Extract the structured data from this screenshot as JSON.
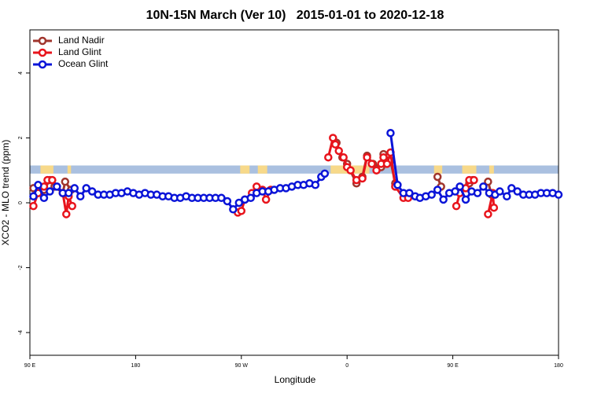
{
  "chart_data": {
    "type": "line",
    "title": "10N-15N March (Ver 10)   2015-01-01 to 2020-12-18",
    "x_label": "Longitude",
    "y_label": "XCO2 - MLO trend (ppm)",
    "xlim": [
      90,
      540
    ],
    "ylim": [
      -4.7,
      5.33
    ],
    "xticks": [
      {
        "value": 90,
        "label": "90 E"
      },
      180,
      {
        "value": 270,
        "label": "90 W"
      },
      {
        "value": 360,
        "label": "0"
      },
      {
        "value": 450,
        "label": "90 E"
      },
      {
        "value": 540,
        "label": "180"
      }
    ],
    "yticks": [
      -4,
      -2,
      0,
      2,
      4
    ],
    "legend": "top-left",
    "band_ylim": [
      0.9,
      1.15
    ],
    "band_color": "#aac0e0",
    "land_spans": [
      [
        99,
        110
      ],
      [
        122,
        125
      ],
      [
        269,
        277
      ],
      [
        284,
        292
      ],
      [
        346,
        379
      ],
      [
        434,
        441
      ],
      [
        458,
        470
      ],
      [
        481,
        485
      ]
    ],
    "land_color": "#f7d98a",
    "series": [
      {
        "name": "Land Nadir",
        "color": "#a0352d",
        "x": [
          93,
          97,
          102,
          107,
          111,
          118,
          120,
          125,
          null,
          351,
          356,
          360,
          368,
          373,
          377,
          382,
          389,
          391,
          397,
          401,
          null,
          437,
          440,
          null,
          464,
          467,
          null,
          480,
          483
        ],
        "values": [
          0.45,
          0.3,
          0.4,
          0.7,
          0.5,
          0.3,
          0.65,
          0.4,
          null,
          1.85,
          1.4,
          1.2,
          0.6,
          0.8,
          1.45,
          1.2,
          1.1,
          1.5,
          1.3,
          0.6,
          null,
          0.8,
          0.5,
          null,
          0.6,
          0.7,
          null,
          0.65,
          0.25
        ]
      },
      {
        "name": "Land Glint",
        "color": "#e8141c",
        "x": [
          93,
          97,
          102,
          105,
          109,
          118,
          121,
          123,
          126,
          null,
          267,
          270,
          273,
          279,
          283,
          288,
          291,
          295,
          null,
          344,
          348,
          350,
          353,
          357,
          360,
          363,
          368,
          373,
          377,
          381,
          385,
          389,
          391,
          394,
          397,
          401,
          408,
          412,
          null,
          453,
          456,
          461,
          464,
          468,
          null,
          480,
          484,
          485
        ],
        "values": [
          -0.1,
          0.3,
          0.5,
          0.7,
          0.7,
          0.3,
          -0.35,
          0.2,
          -0.1,
          null,
          -0.3,
          -0.25,
          0.1,
          0.3,
          0.5,
          0.4,
          0.1,
          0.4,
          null,
          1.4,
          2.0,
          1.8,
          1.6,
          1.4,
          1.1,
          1.0,
          0.7,
          0.75,
          1.4,
          1.2,
          1.0,
          1.2,
          1.4,
          1.2,
          1.55,
          0.5,
          0.15,
          0.15,
          null,
          -0.1,
          0.3,
          0.45,
          0.7,
          0.7,
          null,
          -0.35,
          0.3,
          -0.15
        ]
      },
      {
        "name": "Ocean Glint",
        "color": "#0a14d8",
        "x": [
          93,
          97,
          102,
          107,
          113,
          118,
          123,
          128,
          133,
          138,
          143,
          148,
          153,
          158,
          163,
          168,
          173,
          178,
          183,
          188,
          193,
          198,
          203,
          208,
          213,
          218,
          223,
          228,
          233,
          238,
          243,
          248,
          253,
          258,
          263,
          268,
          273,
          278,
          283,
          288,
          293,
          298,
          303,
          308,
          313,
          318,
          323,
          328,
          333,
          338,
          341,
          null,
          397,
          403,
          408,
          413,
          418,
          422,
          427,
          432,
          437,
          442,
          447,
          452,
          456,
          461,
          466,
          471,
          476,
          481,
          486,
          490,
          496,
          500,
          505,
          510,
          515,
          520,
          525,
          530,
          535,
          540
        ],
        "values": [
          0.2,
          0.55,
          0.15,
          0.35,
          0.5,
          0.3,
          0.3,
          0.45,
          0.2,
          0.45,
          0.35,
          0.25,
          0.25,
          0.25,
          0.3,
          0.3,
          0.35,
          0.3,
          0.25,
          0.3,
          0.25,
          0.25,
          0.2,
          0.2,
          0.15,
          0.15,
          0.2,
          0.15,
          0.15,
          0.15,
          0.15,
          0.15,
          0.15,
          0.05,
          -0.2,
          0.0,
          0.1,
          0.15,
          0.3,
          0.35,
          0.35,
          0.4,
          0.45,
          0.45,
          0.5,
          0.55,
          0.55,
          0.6,
          0.55,
          0.8,
          0.9,
          null,
          2.15,
          0.55,
          0.3,
          0.3,
          0.2,
          0.15,
          0.2,
          0.25,
          0.4,
          0.1,
          0.3,
          0.35,
          0.5,
          0.1,
          0.35,
          0.3,
          0.5,
          0.3,
          0.25,
          0.35,
          0.2,
          0.45,
          0.35,
          0.25,
          0.25,
          0.25,
          0.3,
          0.3,
          0.3,
          0.25
        ]
      }
    ]
  }
}
